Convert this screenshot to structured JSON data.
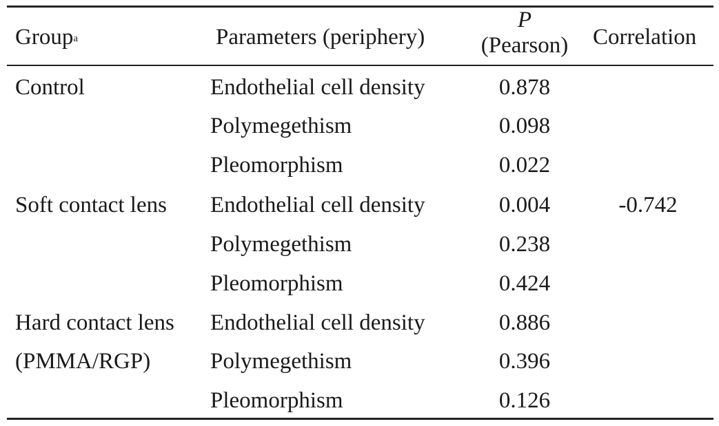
{
  "header": {
    "group": "Group",
    "group_sup": "a",
    "parameters": "Parameters (periphery)",
    "p_symbol": "P",
    "p_sub": "(Pearson)",
    "correlation": "Correlation"
  },
  "groups": [
    {
      "line1": "Control",
      "line2": ""
    },
    {
      "line1": "Soft contact lens",
      "line2": ""
    },
    {
      "line1": "Hard contact lens",
      "line2": "(PMMA/RGP)"
    }
  ],
  "rows": [
    {
      "parameter": "Endothelial cell density",
      "p": "0.878"
    },
    {
      "parameter": "Polymegethism",
      "p": "0.098"
    },
    {
      "parameter": "Pleomorphism",
      "p": "0.022"
    },
    {
      "parameter": "Endothelial cell density",
      "p": "0.004"
    },
    {
      "parameter": "Polymegethism",
      "p": "0.238"
    },
    {
      "parameter": "Pleomorphism",
      "p": "0.424"
    },
    {
      "parameter": "Endothelial cell density",
      "p": "0.886"
    },
    {
      "parameter": "Polymegethism",
      "p": "0.396"
    },
    {
      "parameter": "Pleomorphism",
      "p": "0.126"
    }
  ],
  "correlation_value": "-0.742"
}
